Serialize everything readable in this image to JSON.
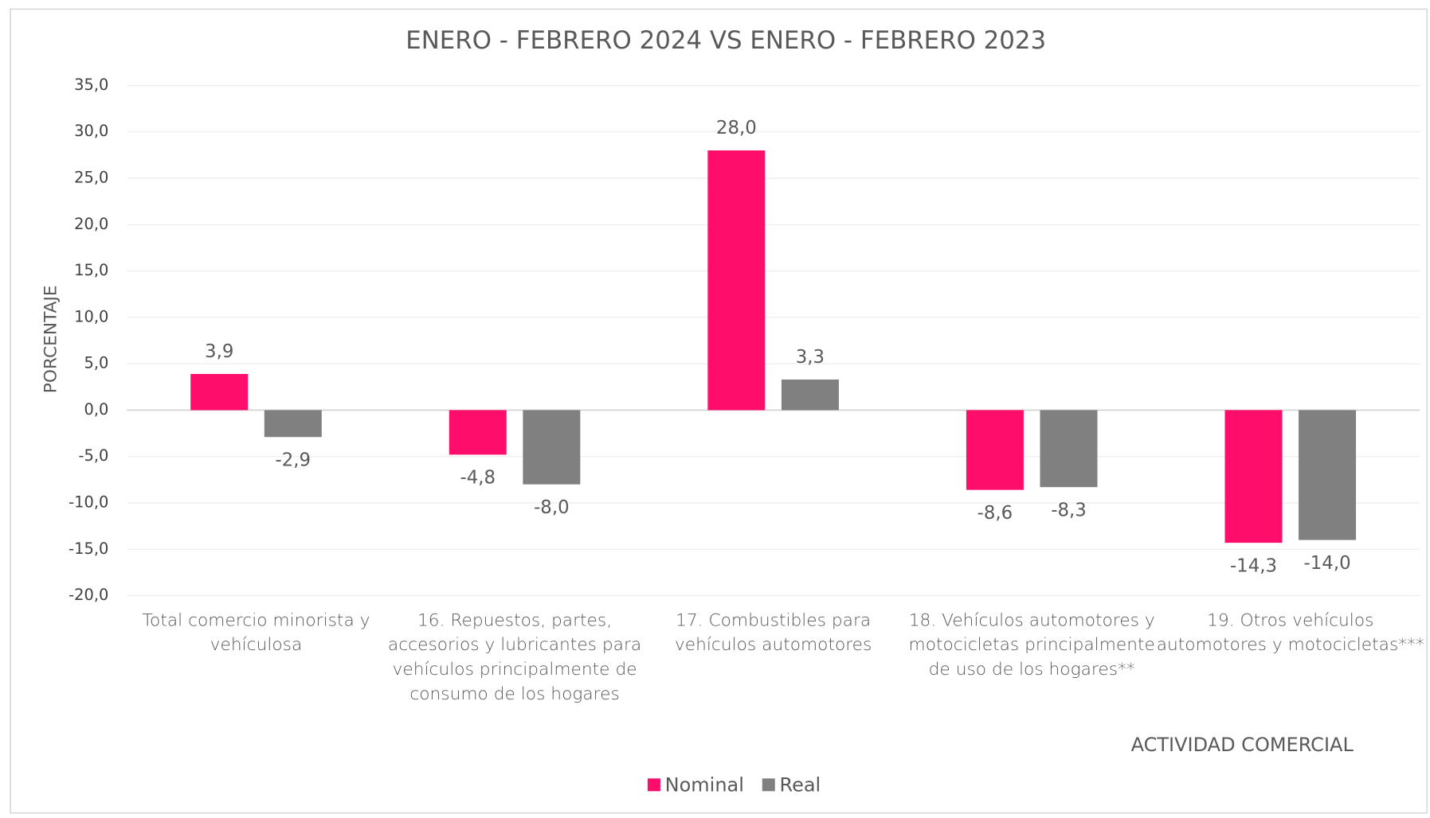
{
  "chart_data": {
    "type": "bar",
    "title": "ENERO - FEBRERO 2024 VS ENERO - FEBRERO 2023",
    "y_label": "PORCENTAJE",
    "x_label": "ACTIVIDAD COMERCIAL",
    "categories": [
      "Total comercio minorista y vehículosa",
      "16. Repuestos, partes, accesorios y lubricantes para vehículos principalmente de consumo de los hogares",
      "17. Combustibles para vehículos automotores",
      "18. Vehículos automotores y motocicletas principalmente de uso de los hogares**",
      "19. Otros vehículos automotores y motocicletas***"
    ],
    "series": [
      {
        "name": "Nominal",
        "color": "#ff0d6a",
        "values": [
          3.9,
          -4.8,
          28.0,
          -8.6,
          -14.3
        ],
        "value_labels": [
          "3,9",
          "-4,8",
          "28,0",
          "-8,6",
          "-14,3"
        ]
      },
      {
        "name": "Real",
        "color": "#808080",
        "values": [
          -2.9,
          -8.0,
          3.3,
          -8.3,
          -14.0
        ],
        "value_labels": [
          "-2,9",
          "-8,0",
          "3,3",
          "-8,3",
          "-14,0"
        ]
      }
    ],
    "ylim": [
      -20,
      35
    ],
    "yticks": [
      {
        "value": -20,
        "label": "-20,0"
      },
      {
        "value": -15,
        "label": "-15,0"
      },
      {
        "value": -10,
        "label": "-10,0"
      },
      {
        "value": -5,
        "label": "-5,0"
      },
      {
        "value": 0,
        "label": "0,0"
      },
      {
        "value": 5,
        "label": "5,0"
      },
      {
        "value": 10,
        "label": "10,0"
      },
      {
        "value": 15,
        "label": "15,0"
      },
      {
        "value": 20,
        "label": "20,0"
      },
      {
        "value": 25,
        "label": "25,0"
      },
      {
        "value": 30,
        "label": "30,0"
      },
      {
        "value": 35,
        "label": "35,0"
      }
    ],
    "grid": true,
    "legend": "bottom"
  }
}
